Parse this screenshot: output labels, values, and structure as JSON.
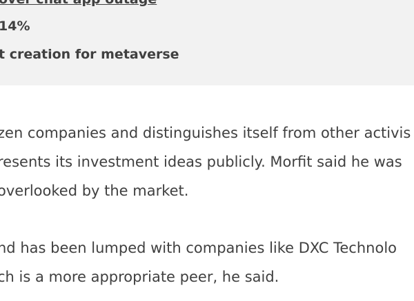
{
  "related": {
    "items": [
      {
        "text": "over chat app outage"
      },
      {
        "text": "14%"
      },
      {
        "text": "t creation for metaverse"
      }
    ]
  },
  "article": {
    "paragraphs": [
      {
        "lines": [
          "zen companies and distinguishes itself from other activis",
          "resents its investment ideas publicly. Morfit said he was",
          " overlooked by the market."
        ]
      },
      {
        "lines": [
          "nd has been lumped with companies like DXC Technolo",
          "ch is a more appropriate peer, he said."
        ]
      }
    ]
  }
}
